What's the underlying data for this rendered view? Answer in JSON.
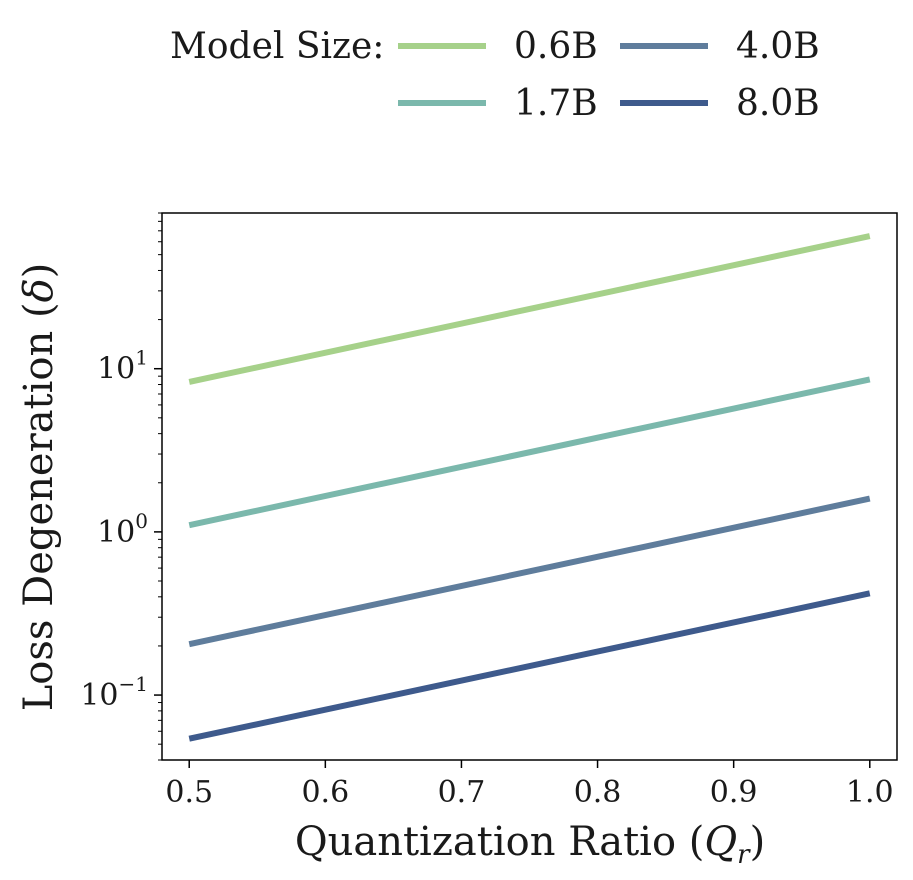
{
  "chart_data": {
    "type": "line",
    "xlabel_main": "Quantization Ratio (",
    "xlabel_q": "Q",
    "xlabel_sub": "r",
    "xlabel_close": ")",
    "ylabel_main": "Loss Degeneration (",
    "ylabel_delta": "δ",
    "ylabel_close": ")",
    "xlim": [
      0.48,
      1.02
    ],
    "ylim": [
      0.04,
      90
    ],
    "yscale": "log",
    "x_ticks": [
      0.5,
      0.6,
      0.7,
      0.8,
      0.9,
      1.0
    ],
    "x_tick_labels": [
      "0.5",
      "0.6",
      "0.7",
      "0.8",
      "0.9",
      "1.0"
    ],
    "y_ticks": [
      0.1,
      1,
      10
    ],
    "y_tick_labels": [
      {
        "base": "10",
        "exp": "−1"
      },
      {
        "base": "10",
        "exp": "0"
      },
      {
        "base": "10",
        "exp": "1"
      }
    ],
    "legend": {
      "title": "Model Size:",
      "placement": "top, above plot, two rows"
    },
    "series": [
      {
        "name": "0.6B",
        "color": "#a6d18a",
        "x": [
          0.5,
          1.0
        ],
        "y": [
          8.3,
          65
        ]
      },
      {
        "name": "1.7B",
        "color": "#7bb8ac",
        "x": [
          0.5,
          1.0
        ],
        "y": [
          1.1,
          8.6
        ]
      },
      {
        "name": "4.0B",
        "color": "#5f7d9c",
        "x": [
          0.5,
          1.0
        ],
        "y": [
          0.205,
          1.6
        ]
      },
      {
        "name": "8.0B",
        "color": "#3e5a8c",
        "x": [
          0.5,
          1.0
        ],
        "y": [
          0.054,
          0.42
        ]
      }
    ]
  }
}
